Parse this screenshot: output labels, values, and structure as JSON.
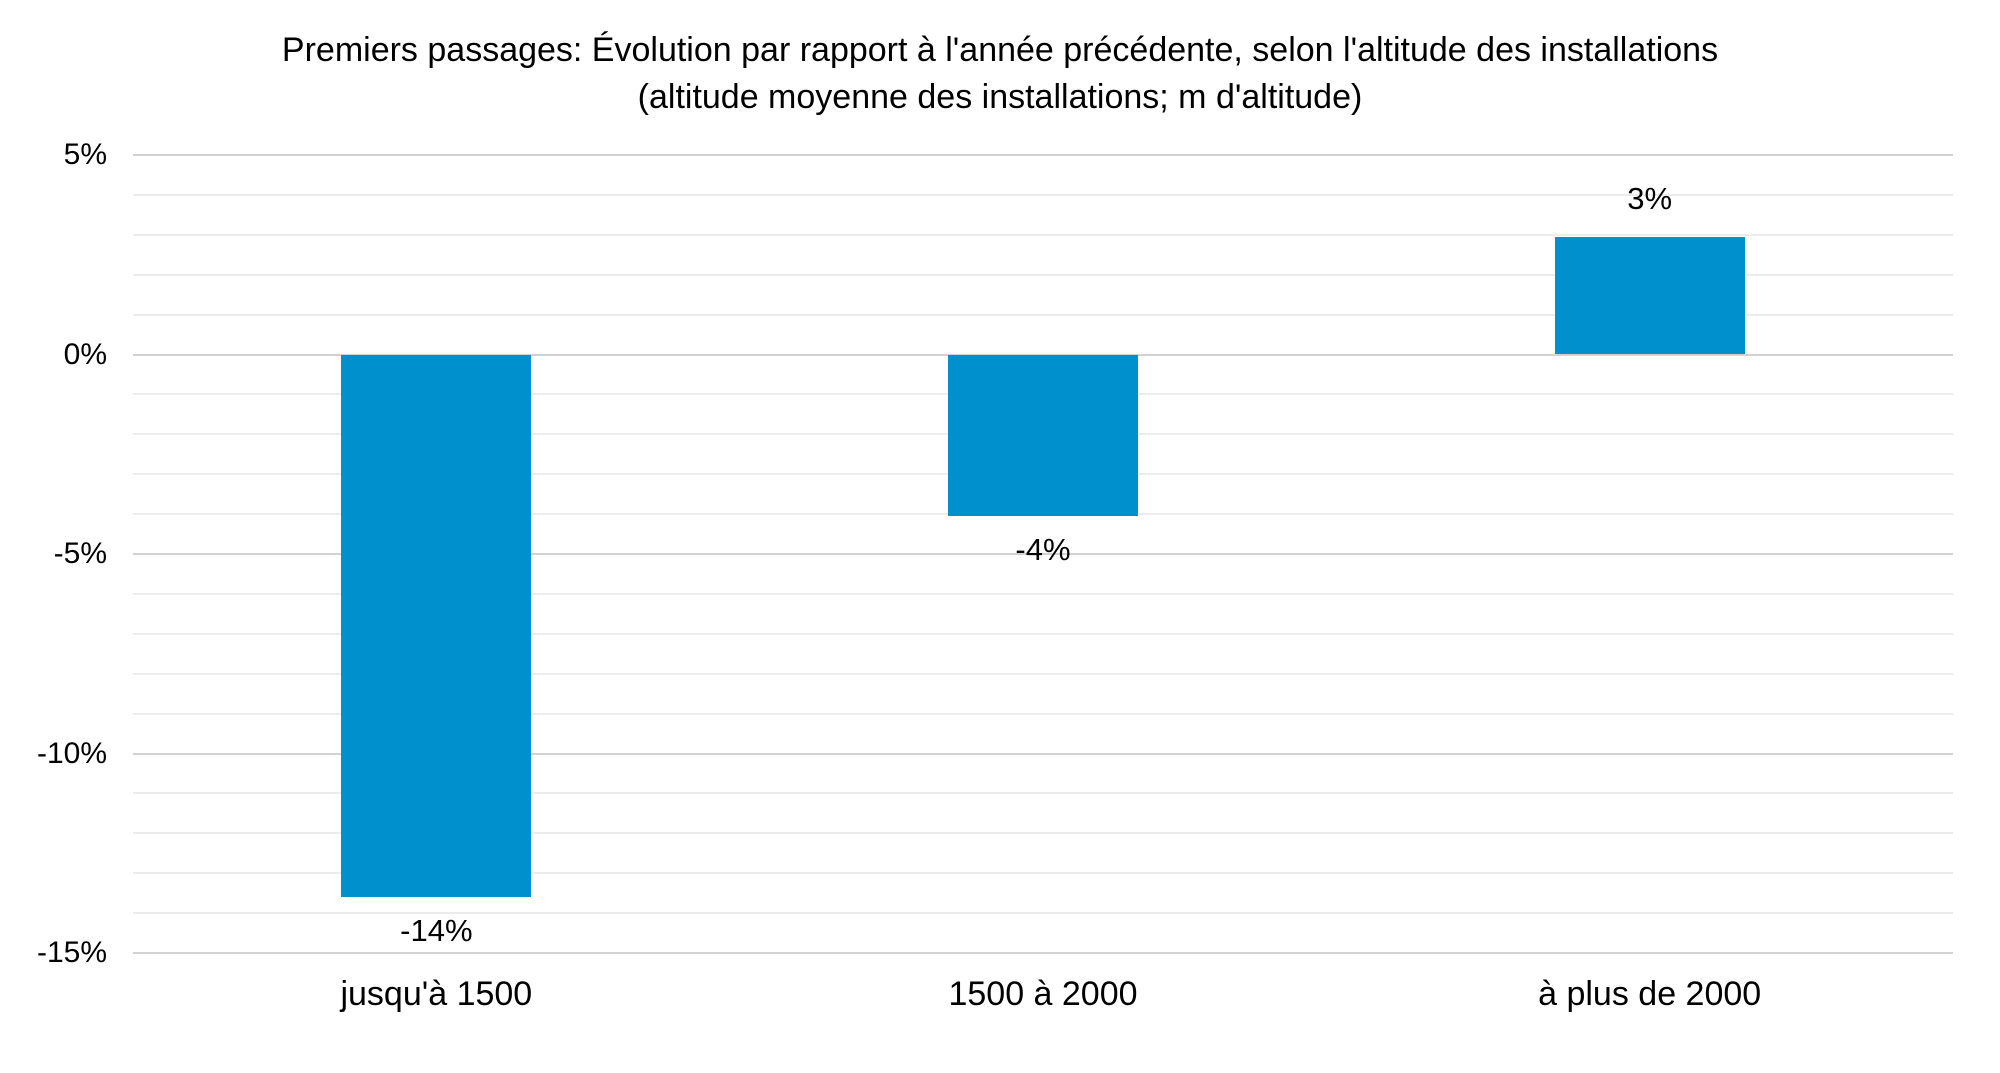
{
  "chart_data": {
    "type": "bar",
    "title": "Premiers passages: Évolution par rapport à l'année précédente, selon l'altitude des installations (altitude moyenne des installations; m d'altitude)",
    "categories": [
      "jusqu'à 1500",
      "1500 à 2000",
      "à plus de 2000"
    ],
    "values": [
      -13.6,
      -4.05,
      2.95
    ],
    "data_labels": [
      "-14%",
      "-4%",
      "3%"
    ],
    "xlabel": "",
    "ylabel": "",
    "ylim": [
      -15,
      5
    ],
    "ytick_major_step": 5,
    "ytick_minor_step": 1,
    "ytick_labels": [
      "5%",
      "0%",
      "-5%",
      "-10%",
      "-15%"
    ],
    "legend": "none",
    "grid": "horizontal, minor and major lines",
    "bar_color": "#0090CE",
    "major_grid_color": "#D2D2D2",
    "minor_grid_color": "#ECECEC",
    "text_color": "#000000",
    "background_color": "#FFFFFF"
  }
}
